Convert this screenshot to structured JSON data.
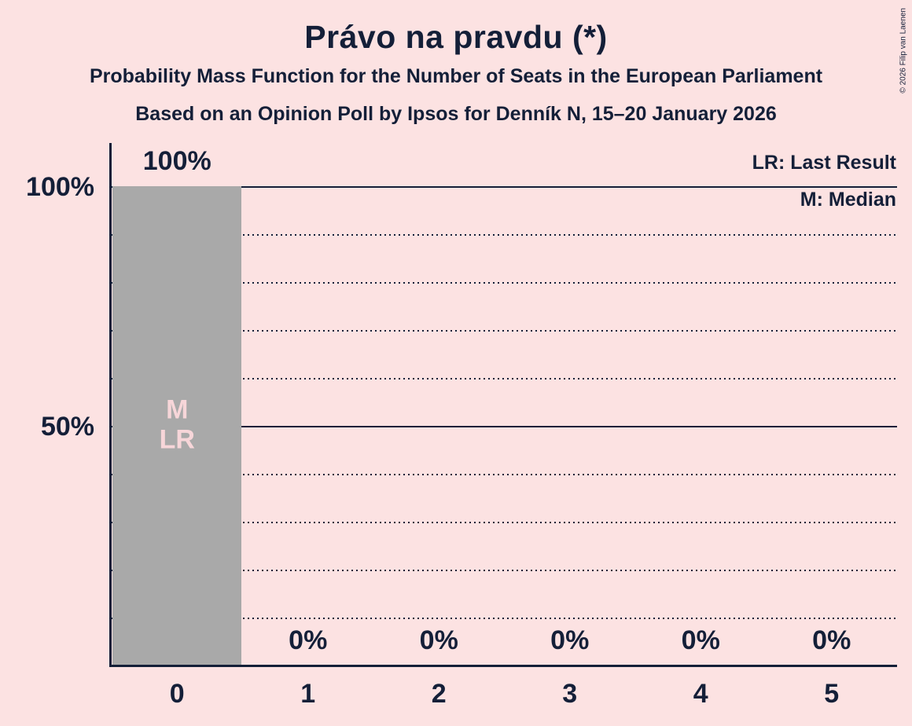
{
  "title": "Právo na pravdu (*)",
  "subtitle1": "Probability Mass Function for the Number of Seats in the European Parliament",
  "subtitle2": "Based on an Opinion Poll by Ipsos for Denník N, 15–20 January 2026",
  "copyright": "© 2026 Filip van Laenen",
  "legend": {
    "lr": "LR: Last Result",
    "m": "M: Median"
  },
  "colors": {
    "background": "#fce2e2",
    "ink": "#141f38",
    "bar": "#a9a9a9",
    "bar_annotation": "#f7d6d9"
  },
  "chart_data": {
    "type": "bar",
    "title": "Právo na pravdu (*)",
    "categories": [
      "0",
      "1",
      "2",
      "3",
      "4",
      "5"
    ],
    "values": [
      100,
      0,
      0,
      0,
      0,
      0
    ],
    "value_labels": [
      "100%",
      "0%",
      "0%",
      "0%",
      "0%",
      "0%"
    ],
    "ylim": [
      0,
      109
    ],
    "y_ticks": [
      {
        "value": 100,
        "label": "100%"
      },
      {
        "value": 50,
        "label": "50%"
      }
    ],
    "y_gridlines": [
      {
        "value": 100,
        "style": "solid"
      },
      {
        "value": 90,
        "style": "dotted"
      },
      {
        "value": 80,
        "style": "dotted"
      },
      {
        "value": 70,
        "style": "dotted"
      },
      {
        "value": 60,
        "style": "dotted"
      },
      {
        "value": 50,
        "style": "solid"
      },
      {
        "value": 40,
        "style": "dotted"
      },
      {
        "value": 30,
        "style": "dotted"
      },
      {
        "value": 20,
        "style": "dotted"
      },
      {
        "value": 10,
        "style": "dotted"
      }
    ],
    "annotations": [
      {
        "category": "0",
        "lines": [
          "M",
          "LR"
        ]
      }
    ],
    "legend_position": "top-right",
    "grid": true
  }
}
